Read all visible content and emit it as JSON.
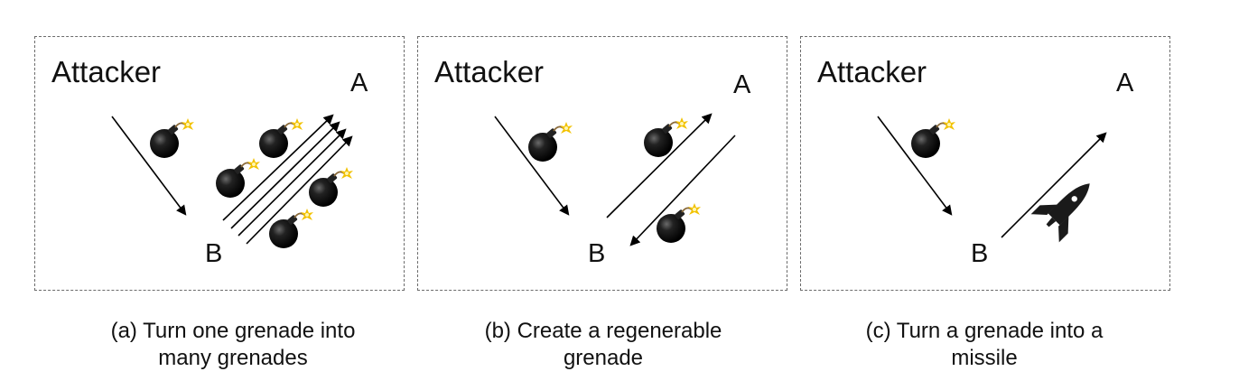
{
  "panels": [
    {
      "attacker_label": "Attacker",
      "point_a": "A",
      "point_b": "B",
      "caption_line1": "(a) Turn one grenade into",
      "caption_line2": "many grenades"
    },
    {
      "attacker_label": "Attacker",
      "point_a": "A",
      "point_b": "B",
      "caption_line1": "(b) Create a regenerable",
      "caption_line2": "grenade"
    },
    {
      "attacker_label": "Attacker",
      "point_a": "A",
      "point_b": "B",
      "caption_line1": "(c) Turn a grenade into a",
      "caption_line2": "missile"
    }
  ],
  "colors": {
    "border": "#6b6b6b",
    "bomb": "#111111",
    "spark": "#f2c200",
    "line": "#000000"
  },
  "icons": [
    "bomb-icon",
    "rocket-icon",
    "arrow"
  ]
}
